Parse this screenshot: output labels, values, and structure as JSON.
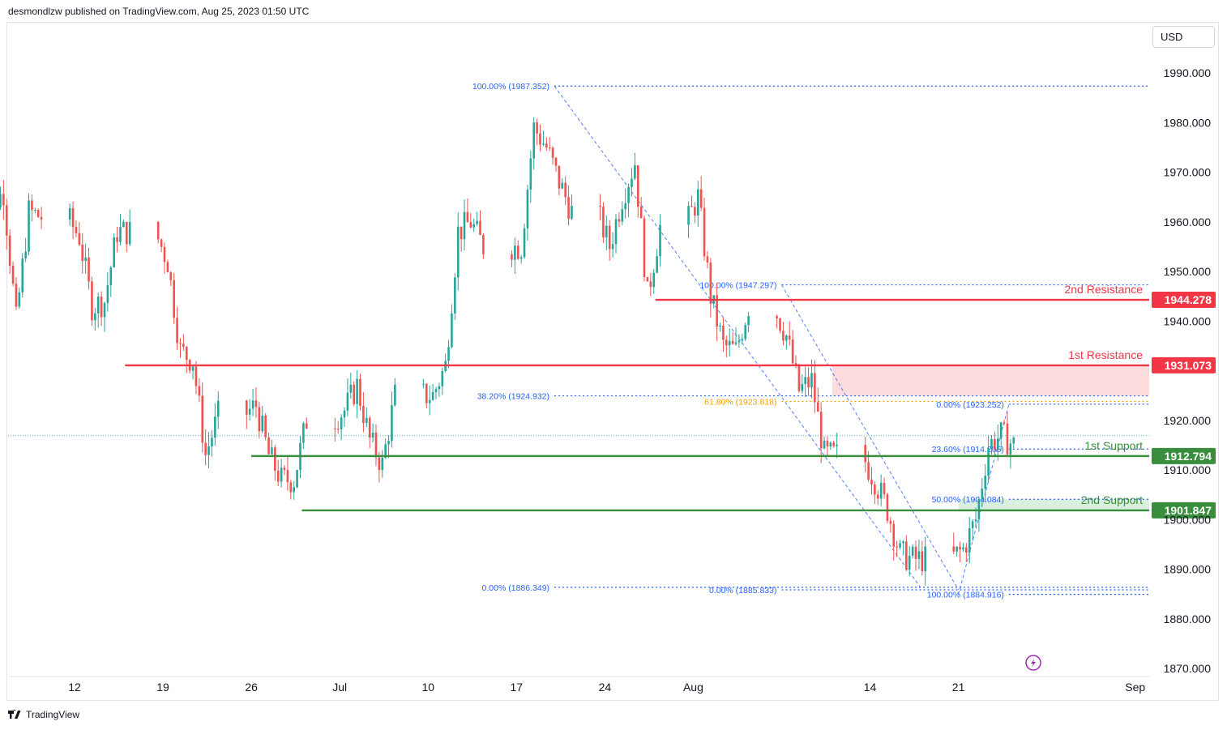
{
  "header": {
    "published_text": "desmondlzw published on TradingView.com, Aug 25, 2023 01:50 UTC"
  },
  "toolbar": {
    "currency": "USD"
  },
  "footer": {
    "brand": "TradingView",
    "logo_icon": "tradingview-logo-icon"
  },
  "colors": {
    "up": "#26a69a",
    "down": "#ef5350",
    "resistance": "#f23645",
    "support": "#388e3c",
    "fib": "#2962ff",
    "fib_text": "#2962ff",
    "fib_gold": "#f0a30a",
    "resistance_zone": "#fdd8da",
    "support_zone": "#d6eedc"
  },
  "chart_data": {
    "type": "candlestick",
    "symbol_currency": "USD",
    "y_axis": {
      "ticks": [
        1990,
        1980,
        1970,
        1960,
        1950,
        1940,
        1920,
        1910,
        1900,
        1890,
        1880,
        1870
      ],
      "tick_labels": [
        "1990.000",
        "1980.000",
        "1970.000",
        "1960.000",
        "1950.000",
        "1940.000",
        "1920.000",
        "1910.000",
        "1900.000",
        "1890.000",
        "1880.000",
        "1870.000"
      ],
      "range": [
        1869,
        1995
      ]
    },
    "x_axis": {
      "tick_labels": [
        "12",
        "19",
        "26",
        "Jul",
        "10",
        "17",
        "24",
        "Aug",
        "14",
        "21",
        "Sep"
      ],
      "tick_dates": [
        "2023-06-12",
        "2023-06-19",
        "2023-06-26",
        "2023-07-03",
        "2023-07-10",
        "2023-07-17",
        "2023-07-24",
        "2023-07-31",
        "2023-08-14",
        "2023-08-21",
        "2023-09-04"
      ],
      "range": [
        "2023-06-05",
        "2023-09-04"
      ]
    },
    "price_series": [
      [
        "2023-06-05",
        1963
      ],
      [
        "2023-06-06",
        1966
      ],
      [
        "2023-06-07",
        1940
      ],
      [
        "2023-06-08",
        1962
      ],
      [
        "2023-06-09",
        1961
      ],
      [
        "2023-06-12",
        1957
      ],
      [
        "2023-06-13",
        1943
      ],
      [
        "2023-06-14",
        1944
      ],
      [
        "2023-06-15",
        1958
      ],
      [
        "2023-06-16",
        1958
      ],
      [
        "2023-06-19",
        1952
      ],
      [
        "2023-06-20",
        1934
      ],
      [
        "2023-06-21",
        1932
      ],
      [
        "2023-06-22",
        1913
      ],
      [
        "2023-06-23",
        1921
      ],
      [
        "2023-06-26",
        1923
      ],
      [
        "2023-06-27",
        1913
      ],
      [
        "2023-06-28",
        1908
      ],
      [
        "2023-06-29",
        1908
      ],
      [
        "2023-06-30",
        1920
      ],
      [
        "2023-07-03",
        1922
      ],
      [
        "2023-07-04",
        1927
      ],
      [
        "2023-07-05",
        1916
      ],
      [
        "2023-07-06",
        1911
      ],
      [
        "2023-07-07",
        1925
      ],
      [
        "2023-07-10",
        1925
      ],
      [
        "2023-07-11",
        1931
      ],
      [
        "2023-07-12",
        1958
      ],
      [
        "2023-07-13",
        1960
      ],
      [
        "2023-07-14",
        1955
      ],
      [
        "2023-07-17",
        1955
      ],
      [
        "2023-07-18",
        1979
      ],
      [
        "2023-07-19",
        1975
      ],
      [
        "2023-07-20",
        1968
      ],
      [
        "2023-07-21",
        1962
      ],
      [
        "2023-07-24",
        1955
      ],
      [
        "2023-07-25",
        1965
      ],
      [
        "2023-07-26",
        1972
      ],
      [
        "2023-07-27",
        1945
      ],
      [
        "2023-07-28",
        1959
      ],
      [
        "2023-07-31",
        1965
      ],
      [
        "2023-08-01",
        1945
      ],
      [
        "2023-08-02",
        1935
      ],
      [
        "2023-08-03",
        1934
      ],
      [
        "2023-08-04",
        1943
      ],
      [
        "2023-08-07",
        1937
      ],
      [
        "2023-08-08",
        1926
      ],
      [
        "2023-08-09",
        1928
      ],
      [
        "2023-08-10",
        1913
      ],
      [
        "2023-08-11",
        1913
      ],
      [
        "2023-08-14",
        1908
      ],
      [
        "2023-08-15",
        1902
      ],
      [
        "2023-08-16",
        1893
      ],
      [
        "2023-08-17",
        1892
      ],
      [
        "2023-08-18",
        1892
      ],
      [
        "2023-08-21",
        1894
      ],
      [
        "2023-08-22",
        1900
      ],
      [
        "2023-08-23",
        1915
      ],
      [
        "2023-08-24",
        1917
      ],
      [
        "2023-08-25",
        1915
      ]
    ],
    "current_price": 1916.9,
    "levels": [
      {
        "name": "2nd Resistance",
        "price": 1944.278,
        "label": "1944.278",
        "kind": "resistance",
        "start_date": "2023-07-28"
      },
      {
        "name": "1st Resistance",
        "price": 1931.073,
        "label": "1931.073",
        "kind": "resistance",
        "start_date": "2023-06-16"
      },
      {
        "name": "1st Support",
        "price": 1912.794,
        "label": "1912.794",
        "kind": "support",
        "start_date": "2023-06-26"
      },
      {
        "name": "2nd Support",
        "price": 1901.847,
        "label": "1901.847",
        "kind": "support",
        "start_date": "2023-06-30"
      }
    ],
    "zones": [
      {
        "kind": "resistance",
        "from_price": 1924.932,
        "to_price": 1931.073,
        "start_date": "2023-08-11"
      },
      {
        "kind": "support",
        "from_price": 1901.847,
        "to_price": 1904.084,
        "start_date": "2023-08-21"
      }
    ],
    "fib_levels": [
      {
        "text": "100.00% (1987.352)",
        "price": 1987.352,
        "start_date": "2023-07-20",
        "style": "blue",
        "label_side": "left"
      },
      {
        "text": "100.00% (1947.297)",
        "price": 1947.297,
        "start_date": "2023-08-07",
        "style": "blue",
        "label_side": "left"
      },
      {
        "text": "38.20% (1924.932)",
        "price": 1924.932,
        "start_date": "2023-07-20",
        "style": "blue",
        "label_side": "left"
      },
      {
        "text": "61.80% (1923.818)",
        "price": 1923.818,
        "start_date": "2023-08-07",
        "style": "gold",
        "label_side": "left"
      },
      {
        "text": "0.00% (1923.252)",
        "price": 1923.252,
        "start_date": "2023-08-25",
        "style": "blue",
        "label_side": "left"
      },
      {
        "text": "23.60% (1914.205)",
        "price": 1914.205,
        "start_date": "2023-08-25",
        "style": "blue",
        "label_side": "left"
      },
      {
        "text": "50.00% (1904.084)",
        "price": 1904.084,
        "start_date": "2023-08-25",
        "style": "blue",
        "label_side": "left"
      },
      {
        "text": "0.00% (1886.349)",
        "price": 1886.349,
        "start_date": "2023-07-20",
        "style": "blue",
        "label_side": "left"
      },
      {
        "text": "0.00% (1885.833)",
        "price": 1885.833,
        "start_date": "2023-08-07",
        "style": "blue",
        "label_side": "left"
      },
      {
        "text": "100.00% (1884.916)",
        "price": 1884.916,
        "start_date": "2023-08-25",
        "style": "blue",
        "label_side": "left"
      }
    ],
    "trend_lines": [
      {
        "from": [
          "2023-07-20",
          1987.352
        ],
        "to": [
          "2023-08-18",
          1886.349
        ]
      },
      {
        "from": [
          "2023-08-07",
          1947.297
        ],
        "to": [
          "2023-08-21",
          1885.833
        ]
      },
      {
        "from": [
          "2023-08-21",
          1884.916
        ],
        "to": [
          "2023-08-25",
          1923.252
        ]
      }
    ]
  }
}
